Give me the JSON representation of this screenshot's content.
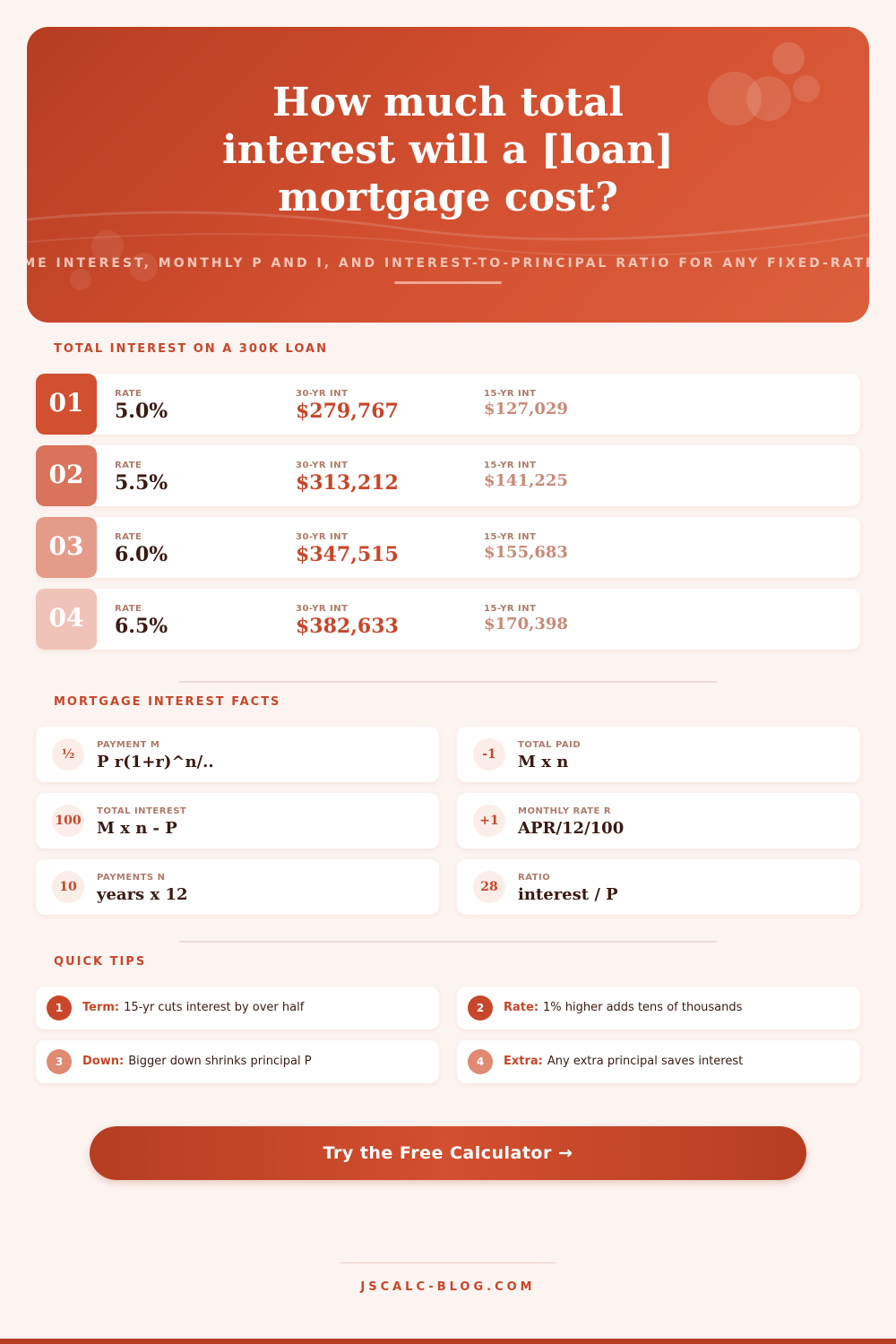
{
  "header": {
    "title": "How much total interest will a [loan] mortgage cost?",
    "subtitle": "LIFETIME INTEREST, MONTHLY P AND I, AND INTEREST-TO-PRINCIPAL RATIO FOR ANY FIXED-RATE LOAN"
  },
  "table": {
    "title": "TOTAL INTEREST ON A 300K LOAN",
    "rows": [
      {
        "number": "01",
        "rate_label": "RATE",
        "rate": "5.0%",
        "int30_label": "30-YR INT",
        "int30": "$279,767",
        "int15_label": "15-YR INT",
        "int15": "$127,029"
      },
      {
        "number": "02",
        "rate_label": "RATE",
        "rate": "5.5%",
        "int30_label": "30-YR INT",
        "int30": "$313,212",
        "int15_label": "15-YR INT",
        "int15": "$141,225"
      },
      {
        "number": "03",
        "rate_label": "RATE",
        "rate": "6.0%",
        "int30_label": "30-YR INT",
        "int30": "$347,515",
        "int15_label": "15-YR INT",
        "int15": "$155,683"
      },
      {
        "number": "04",
        "rate_label": "RATE",
        "rate": "6.5%",
        "int30_label": "30-YR INT",
        "int30": "$382,633",
        "int15_label": "15-YR INT",
        "int15": "$170,398"
      }
    ]
  },
  "facts": {
    "title": "MORTGAGE INTEREST FACTS",
    "items": [
      {
        "icon": "½",
        "label": "PAYMENT M",
        "value": "P r(1+r)^n/.."
      },
      {
        "icon": "-1",
        "label": "TOTAL PAID",
        "value": "M x n"
      },
      {
        "icon": "100",
        "label": "TOTAL INTEREST",
        "value": "M x n - P"
      },
      {
        "icon": "+1",
        "label": "MONTHLY RATE R",
        "value": "APR/12/100"
      },
      {
        "icon": "10",
        "label": "PAYMENTS N",
        "value": "years x 12"
      },
      {
        "icon": "28",
        "label": "RATIO",
        "value": "interest / P"
      }
    ]
  },
  "tips": {
    "title": "QUICK TIPS",
    "items": [
      {
        "number": "1",
        "term": "Term:",
        "text": "15-yr cuts interest by over half"
      },
      {
        "number": "2",
        "term": "Rate:",
        "text": "1% higher adds tens of thousands"
      },
      {
        "number": "3",
        "term": "Down:",
        "text": "Bigger down shrinks principal P"
      },
      {
        "number": "4",
        "term": "Extra:",
        "text": "Any extra principal saves interest"
      }
    ]
  },
  "button": {
    "label": "Try the Free Calculator →"
  },
  "footer": {
    "site": "JSCALC-BLOG.COM"
  }
}
